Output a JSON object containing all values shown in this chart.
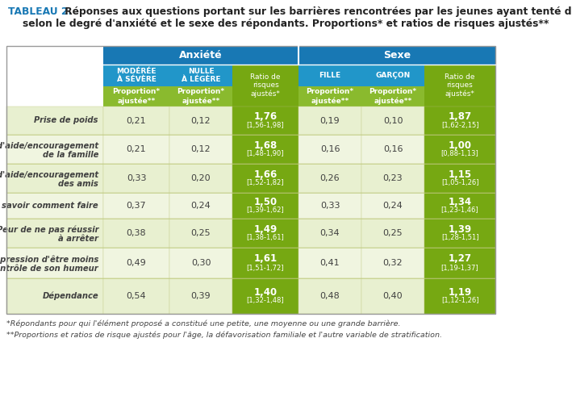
{
  "title_bold": "TABLEAU 2.",
  "title_rest": " Réponses aux questions portant sur les barrières rencontrées par les jeunes ayant tenté d'arrêter",
  "title_line2": "selon le degré d'anxiété et le sexe des répondants. Proportions* et ratios de risques ajustés**",
  "footnote1": "*Répondants pour qui l'élément proposé a constitué une petite, une moyenne ou une grande barrière.",
  "footnote2": "**Proportions et ratios de risque ajustés pour l'âge, la défavorisation familiale et l'autre variable de stratification.",
  "col_header_anxiete": "Anxiété",
  "col_header_sexe": "Sexe",
  "rows": [
    {
      "label1": "Prise de poids",
      "label2": "",
      "mod_severe": "0,21",
      "nulle_legere": "0,12",
      "ratio_anxiete_main": "1,76",
      "ratio_anxiete_ci": "[1,56-1,98]",
      "fille": "0,19",
      "garcon": "0,10",
      "ratio_sexe_main": "1,87",
      "ratio_sexe_ci": "[1,62-2,15]"
    },
    {
      "label1": "Pas d'aide/encouragement",
      "label2": "de la famille",
      "mod_severe": "0,21",
      "nulle_legere": "0,12",
      "ratio_anxiete_main": "1,68",
      "ratio_anxiete_ci": "[1,48-1,90]",
      "fille": "0,16",
      "garcon": "0,16",
      "ratio_sexe_main": "1,00",
      "ratio_sexe_ci": "[0,88-1,13]"
    },
    {
      "label1": "Pas d'aide/encouragement",
      "label2": "des amis",
      "mod_severe": "0,33",
      "nulle_legere": "0,20",
      "ratio_anxiete_main": "1,66",
      "ratio_anxiete_ci": "[1,52-1,82]",
      "fille": "0,26",
      "garcon": "0,23",
      "ratio_sexe_main": "1,15",
      "ratio_sexe_ci": "[1,05-1,26]"
    },
    {
      "label1": "Pas savoir comment faire",
      "label2": "",
      "mod_severe": "0,37",
      "nulle_legere": "0,24",
      "ratio_anxiete_main": "1,50",
      "ratio_anxiete_ci": "[1,39-1,62]",
      "fille": "0,33",
      "garcon": "0,24",
      "ratio_sexe_main": "1,34",
      "ratio_sexe_ci": "[1,23-1,46]"
    },
    {
      "label1": "Peur de ne pas réussir",
      "label2": "à arrêter",
      "mod_severe": "0,38",
      "nulle_legere": "0,25",
      "ratio_anxiete_main": "1,49",
      "ratio_anxiete_ci": "[1,38-1,61]",
      "fille": "0,34",
      "garcon": "0,25",
      "ratio_sexe_main": "1,39",
      "ratio_sexe_ci": "[1,28-1,51]"
    },
    {
      "label1": "Impression d'être moins",
      "label2": "en contrôle de son humeur",
      "mod_severe": "0,49",
      "nulle_legere": "0,30",
      "ratio_anxiete_main": "1,61",
      "ratio_anxiete_ci": "[1,51-1,72]",
      "fille": "0,41",
      "garcon": "0,32",
      "ratio_sexe_main": "1,27",
      "ratio_sexe_ci": "[1,19-1,37]"
    },
    {
      "label1": "Dépendance",
      "label2": "",
      "mod_severe": "0,54",
      "nulle_legere": "0,39",
      "ratio_anxiete_main": "1,40",
      "ratio_anxiete_ci": "[1,32-1,48]",
      "fille": "0,48",
      "garcon": "0,40",
      "ratio_sexe_main": "1,19",
      "ratio_sexe_ci": "[1,12-1,26]"
    }
  ],
  "color_blue_dark": "#1878b4",
  "color_blue_mid": "#2196c9",
  "color_green_dark": "#76a812",
  "color_green_mid": "#8aba2e",
  "color_green_light": "#c8db8a",
  "color_row_odd": "#e8f0d0",
  "color_row_even": "#f0f5e0",
  "color_white": "#ffffff",
  "color_title_blue": "#1878b4",
  "color_label_text": "#404040",
  "color_border_light": "#c8d880"
}
